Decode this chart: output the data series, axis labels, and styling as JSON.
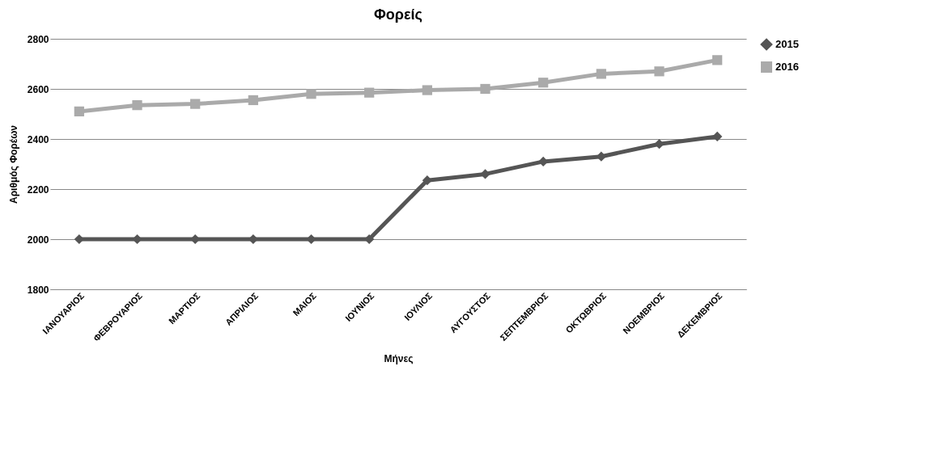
{
  "chart_data": {
    "type": "line",
    "title": "Φορείς",
    "xlabel": "Μήνες",
    "ylabel": "Αριθμός Φορέων",
    "categories": [
      "ΙΑΝΟΥΑΡΙΟΣ",
      "ΦΕΒΡΟΥΑΡΙΟΣ",
      "ΜΑΡΤΙΟΣ",
      "ΑΠΡΙΛΙΟΣ",
      "ΜΑΙΟΣ",
      "ΙΟΥΝΙΟΣ",
      "ΙΟΥΛΙΟΣ",
      "ΑΥΓΟΥΣΤΟΣ",
      "ΣΕΠΤΕΜΒΡΙΟΣ",
      "ΟΚΤΩΒΡΙΟΣ",
      "ΝΟΕΜΒΡΙΟΣ",
      "ΔΕΚΕΜΒΡΙΟΣ"
    ],
    "series": [
      {
        "name": "2015",
        "color": "#555555",
        "marker": "diamond",
        "values": [
          2000,
          2000,
          2000,
          2000,
          2000,
          2000,
          2235,
          2260,
          2310,
          2330,
          2380,
          2410
        ]
      },
      {
        "name": "2016",
        "color": "#aaaaaa",
        "marker": "square",
        "values": [
          2510,
          2535,
          2540,
          2555,
          2580,
          2585,
          2595,
          2600,
          2625,
          2660,
          2670,
          2715
        ]
      }
    ],
    "ylim": [
      1800,
      2800
    ],
    "yticks": [
      1800,
      2000,
      2200,
      2400,
      2600,
      2800
    ],
    "grid": "y",
    "legend": "right"
  }
}
